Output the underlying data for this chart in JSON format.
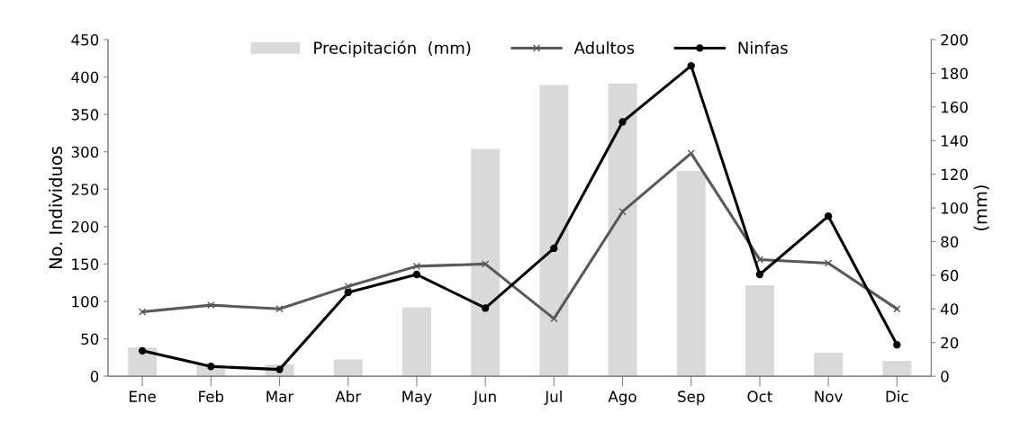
{
  "chart_data": {
    "type": "line",
    "categories": [
      "Ene",
      "Feb",
      "Mar",
      "Abr",
      "May",
      "Jun",
      "Jul",
      "Ago",
      "Sep",
      "Oct",
      "Nov",
      "Dic"
    ],
    "ylabel": "No. Individuos",
    "y2label": "(mm)",
    "ylim": [
      0,
      450
    ],
    "yticks": [
      0,
      50,
      100,
      150,
      200,
      250,
      300,
      350,
      400,
      450
    ],
    "y2lim": [
      0,
      200
    ],
    "y2ticks": [
      0,
      20,
      40,
      60,
      80,
      100,
      120,
      140,
      160,
      180,
      200
    ],
    "grid": false,
    "legend": "top",
    "series": [
      {
        "name": "Precipitación  (mm)",
        "type": "bar",
        "axis": "y2",
        "color": "#d9d9d9",
        "values": [
          17,
          7,
          7,
          10,
          41,
          135,
          173,
          174,
          122,
          54,
          14,
          9
        ]
      },
      {
        "name": "Adultos",
        "color": "#595959",
        "marker": "cross",
        "values": [
          86,
          95,
          90,
          120,
          147,
          150,
          77,
          220,
          298,
          156,
          151,
          90
        ]
      },
      {
        "name": "Ninfas",
        "color": "#000000",
        "marker": "circle",
        "values": [
          34,
          13,
          9,
          112,
          136,
          91,
          171,
          340,
          415,
          136,
          214,
          42
        ]
      }
    ]
  }
}
